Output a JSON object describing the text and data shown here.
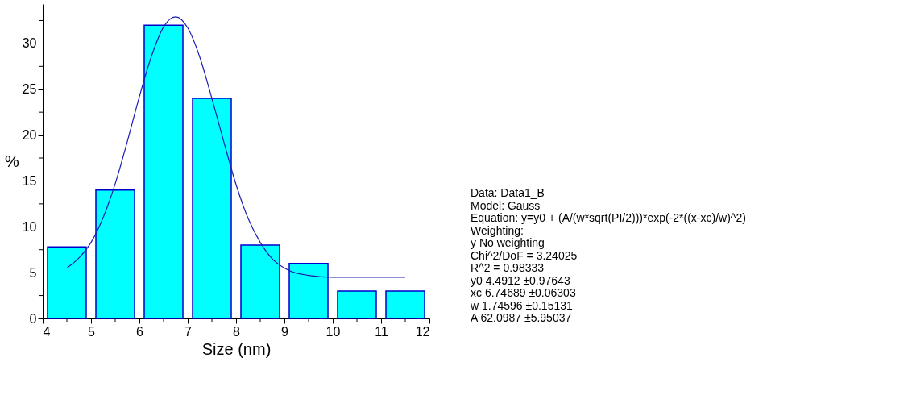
{
  "chart_data": {
    "type": "bar",
    "xlabel": "Size (nm)",
    "ylabel": "%",
    "x": [
      4.5,
      5.5,
      6.5,
      7.5,
      8.5,
      9.5,
      10.5,
      11.5
    ],
    "series": [
      {
        "color": "#00ffff",
        "values": [
          7.8,
          14,
          32,
          24,
          8,
          6,
          3,
          3
        ]
      },
      {
        "type": "line",
        "color": "#1c1cb0",
        "x": [
          4.5,
          4.75,
          5.0,
          5.25,
          5.5,
          5.75,
          6.0,
          6.25,
          6.5,
          6.75,
          7.0,
          7.25,
          7.5,
          7.75,
          8.0,
          8.25,
          8.5,
          8.75,
          9.0,
          9.5,
          10.0,
          10.5,
          11.0,
          11.5
        ],
        "values": [
          5.5,
          6.6,
          8.3,
          11.0,
          14.7,
          19.3,
          24.2,
          28.6,
          31.8,
          32.9,
          31.7,
          28.5,
          24.0,
          19.2,
          14.6,
          10.9,
          8.3,
          6.5,
          5.5,
          4.7,
          4.5,
          4.5,
          4.5,
          4.5
        ]
      }
    ],
    "xlim": [
      4,
      12
    ],
    "xticks": [
      4,
      {
        "value": 4.5,
        "label": null
      },
      5,
      {
        "value": 5.5,
        "label": null
      },
      6,
      {
        "value": 6.5,
        "label": null
      },
      7,
      {
        "value": 7.5,
        "label": null
      },
      8,
      {
        "value": 8.5,
        "label": null
      },
      9,
      {
        "value": 9.5,
        "label": null
      },
      10,
      {
        "value": 10.5,
        "label": null
      },
      11,
      {
        "value": 11.5,
        "label": null
      },
      12
    ],
    "ylim": [
      0,
      34.3
    ],
    "yticks": [
      0,
      {
        "value": 2.5,
        "label": null
      },
      5,
      {
        "value": 7.5,
        "label": null
      },
      10,
      {
        "value": 12.5,
        "label": null
      },
      15,
      {
        "value": 17.5,
        "label": null
      },
      20,
      {
        "value": 22.5,
        "label": null
      },
      25,
      {
        "value": 27.5,
        "label": null
      },
      30,
      {
        "value": 32.5,
        "label": null
      }
    ],
    "grid": false,
    "annotations": [
      "Data: Data1_B",
      "Model: Gauss",
      "Equation: y=y0 + (A/(w*sqrt(PI/2)))*exp(-2*((x-xc)/w)^2)",
      "Weighting:",
      "y    No weighting",
      "Chi^2/DoF = 3.24025",
      "R^2 =  0.98333",
      "y0    4.4912 ±0.97643",
      "xc    6.74689  ±0.06303",
      "w     1.74596  ±0.15131",
      "A     62.0987  ±5.95037"
    ]
  }
}
